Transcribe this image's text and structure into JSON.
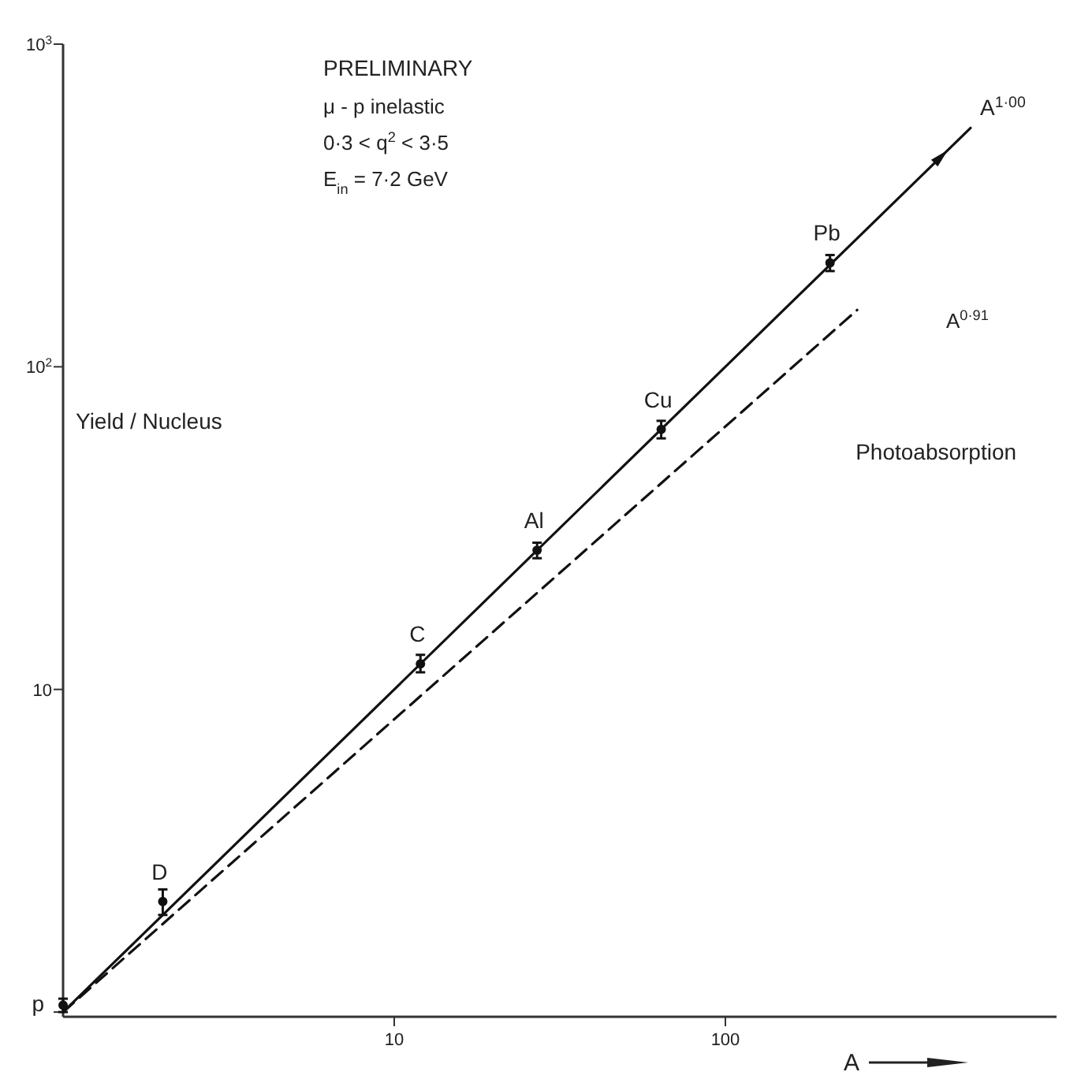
{
  "chart_data": {
    "type": "scatter",
    "ylabel": "Yield / Nucleus",
    "xlabel": "A",
    "log": "xy",
    "xlim": [
      1,
      1000
    ],
    "ylim": [
      1,
      1000
    ],
    "xticks": [
      10,
      100
    ],
    "yticks": [
      {
        "value": 1,
        "label": null
      },
      10,
      {
        "value": 100,
        "label": "10$^{2}$"
      },
      {
        "value": 1000,
        "label": "10$^{3}$"
      }
    ],
    "grid": false,
    "series": [
      {
        "color": "#111111",
        "marker": "circle",
        "x": [
          1,
          2,
          12,
          27,
          64,
          207
        ],
        "values": [
          1.05,
          2.2,
          12,
          27,
          64,
          210
        ],
        "errors": [
          [
            1.0,
            1.1
          ],
          [
            2.0,
            2.4
          ],
          [
            11.3,
            12.8
          ],
          [
            25.5,
            28.5
          ],
          [
            60,
            68
          ],
          [
            198,
            222
          ]
        ]
      },
      {
        "type": "line",
        "name": "A$^{1·00}$",
        "color": "#111111",
        "line_style": "solid",
        "marker": "none",
        "x": [
          1,
          550
        ],
        "values": [
          1,
          550
        ]
      },
      {
        "type": "line",
        "name": "Photoabsorption",
        "color": "#111111",
        "line_style": "dashed",
        "marker": "none",
        "x": [
          1,
          250
        ],
        "values": [
          1,
          150
        ]
      }
    ],
    "annotations": [
      "PRELIMINARY",
      "μ - p inelastic",
      "0·3 < q$^{2}$ < 3·5",
      "E$_{in}$ = 7·2 GeV",
      {
        "text": "p",
        "x": 1,
        "y": 1.05
      },
      {
        "text": "D",
        "x": 2,
        "y": 2.2
      },
      {
        "text": "C",
        "x": 12,
        "y": 12
      },
      {
        "text": "Al",
        "x": 27,
        "y": 27
      },
      {
        "text": "Cu",
        "x": 64,
        "y": 64
      },
      {
        "text": "Pb",
        "x": 207,
        "y": 210
      },
      "A$^{0·91}$"
    ]
  }
}
